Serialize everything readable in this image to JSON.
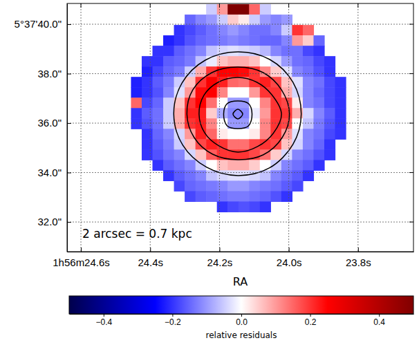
{
  "chart_data": {
    "type": "heatmap",
    "x_label": "RA",
    "annotation": "2 arcsec = 0.7 kpc",
    "grid": true,
    "xlim": [
      24.64,
      23.64
    ],
    "ylim": [
      30.8,
      40.84
    ],
    "xticks": [
      {
        "value": 24.6,
        "label": "1h56m24.6s"
      },
      {
        "value": 24.4,
        "label": "24.4s"
      },
      {
        "value": 24.2,
        "label": "24.2s"
      },
      {
        "value": 24.0,
        "label": "24.0s"
      },
      {
        "value": 23.8,
        "label": "23.8s"
      }
    ],
    "yticks": [
      {
        "value": 40,
        "label": "5°37'40.0\""
      },
      {
        "value": 38,
        "label": "38.0\""
      },
      {
        "value": 36,
        "label": "36.0\""
      },
      {
        "value": 34,
        "label": "34.0\""
      },
      {
        "value": 32,
        "label": "32.0\""
      }
    ],
    "x": [
      24.44,
      24.409,
      24.378,
      24.347,
      24.316,
      24.285,
      24.254,
      24.223,
      24.192,
      24.161,
      24.13,
      24.099,
      24.068,
      24.037,
      24.006,
      23.975,
      23.944,
      23.913,
      23.882,
      23.851
    ],
    "y": [
      40.6,
      40.18,
      39.76,
      39.34,
      38.92,
      38.5,
      38.08,
      37.66,
      37.24,
      36.82,
      36.4,
      35.98,
      35.56,
      35.14,
      34.72,
      34.3,
      33.88,
      33.46,
      33.04,
      32.62
    ],
    "z": [
      [
        null,
        null,
        null,
        null,
        null,
        null,
        null,
        -0.05,
        0.1,
        0.5,
        0.5,
        0.15,
        -0.05,
        null,
        null,
        null,
        null,
        null,
        null,
        null
      ],
      [
        null,
        null,
        null,
        null,
        null,
        -0.15,
        -0.12,
        -0.1,
        -0.05,
        0.05,
        0.02,
        -0.05,
        -0.1,
        -0.12,
        -0.1,
        null,
        null,
        null,
        null,
        null
      ],
      [
        null,
        null,
        null,
        null,
        -0.2,
        -0.18,
        -0.16,
        -0.14,
        -0.12,
        -0.1,
        -0.12,
        -0.14,
        -0.14,
        -0.12,
        -0.05,
        0.2,
        0.15,
        null,
        null,
        null
      ],
      [
        null,
        null,
        null,
        -0.22,
        -0.2,
        -0.17,
        -0.15,
        -0.14,
        -0.13,
        -0.12,
        -0.13,
        -0.14,
        -0.15,
        -0.15,
        -0.12,
        0.1,
        0.05,
        -0.15,
        null,
        null
      ],
      [
        null,
        null,
        -0.2,
        -0.2,
        -0.16,
        -0.14,
        -0.12,
        -0.06,
        -0.04,
        -0.03,
        -0.04,
        -0.05,
        -0.07,
        -0.12,
        -0.14,
        -0.14,
        -0.18,
        -0.2,
        null,
        null
      ],
      [
        null,
        -0.2,
        -0.2,
        -0.16,
        -0.15,
        -0.13,
        -0.06,
        -0.02,
        0.06,
        0.08,
        0.08,
        0.06,
        0.0,
        -0.04,
        -0.1,
        -0.14,
        -0.15,
        -0.18,
        -0.2,
        null
      ],
      [
        null,
        -0.22,
        -0.18,
        -0.15,
        -0.13,
        -0.05,
        0.08,
        0.2,
        0.25,
        0.25,
        0.24,
        0.2,
        0.12,
        0.05,
        -0.03,
        -0.12,
        -0.14,
        -0.17,
        -0.2,
        null
      ],
      [
        -0.22,
        -0.2,
        -0.16,
        -0.13,
        -0.05,
        0.06,
        0.2,
        0.26,
        0.22,
        0.15,
        0.14,
        0.2,
        0.22,
        0.18,
        0.06,
        -0.03,
        -0.12,
        -0.14,
        -0.18,
        -0.2
      ],
      [
        -0.22,
        -0.2,
        -0.17,
        -0.12,
        -0.03,
        0.1,
        0.24,
        0.25,
        0.12,
        0.0,
        0.0,
        0.1,
        0.2,
        0.2,
        0.08,
        -0.04,
        -0.12,
        -0.15,
        -0.18,
        -0.2
      ],
      [
        0.15,
        -0.18,
        -0.15,
        -0.05,
        0.06,
        0.2,
        0.25,
        0.14,
        0.0,
        -0.1,
        -0.1,
        0.0,
        0.12,
        0.2,
        0.18,
        0.02,
        -0.12,
        -0.14,
        -0.18,
        -0.2
      ],
      [
        -0.2,
        -0.16,
        -0.14,
        -0.05,
        0.08,
        0.22,
        0.22,
        0.05,
        -0.08,
        -0.12,
        -0.12,
        -0.02,
        0.1,
        0.2,
        0.2,
        0.08,
        -0.04,
        -0.12,
        -0.16,
        -0.2
      ],
      [
        -0.2,
        -0.17,
        -0.14,
        -0.05,
        0.08,
        0.2,
        0.22,
        0.12,
        0.0,
        -0.1,
        -0.1,
        0.0,
        0.12,
        0.2,
        0.18,
        0.0,
        -0.06,
        -0.13,
        -0.17,
        -0.2
      ],
      [
        null,
        -0.2,
        -0.15,
        -0.12,
        -0.04,
        0.1,
        0.22,
        0.15,
        0.02,
        0.0,
        0.0,
        0.02,
        0.12,
        0.2,
        0.1,
        -0.03,
        -0.12,
        -0.14,
        -0.18,
        -0.2
      ],
      [
        null,
        -0.2,
        -0.16,
        -0.13,
        -0.05,
        0.06,
        0.18,
        0.22,
        0.2,
        0.14,
        0.14,
        0.18,
        0.2,
        0.18,
        0.06,
        -0.04,
        -0.12,
        -0.15,
        -0.2,
        null
      ],
      [
        null,
        -0.2,
        -0.17,
        -0.14,
        -0.12,
        -0.04,
        0.06,
        0.16,
        0.2,
        0.2,
        0.2,
        0.18,
        0.14,
        0.05,
        -0.04,
        -0.12,
        -0.14,
        -0.17,
        -0.2,
        null
      ],
      [
        null,
        null,
        -0.2,
        -0.16,
        -0.14,
        -0.12,
        -0.05,
        0.0,
        0.06,
        0.08,
        0.08,
        0.05,
        0.0,
        -0.05,
        -0.12,
        -0.14,
        -0.16,
        -0.2,
        null,
        null
      ],
      [
        null,
        null,
        null,
        -0.2,
        -0.16,
        -0.14,
        -0.12,
        -0.06,
        -0.04,
        -0.03,
        -0.03,
        -0.04,
        -0.06,
        -0.12,
        -0.14,
        -0.16,
        -0.2,
        null,
        null,
        null
      ],
      [
        null,
        null,
        null,
        null,
        -0.18,
        -0.15,
        -0.14,
        -0.13,
        -0.12,
        -0.1,
        -0.1,
        -0.12,
        -0.13,
        -0.14,
        -0.16,
        -0.18,
        null,
        null,
        null,
        null
      ],
      [
        null,
        null,
        null,
        null,
        null,
        -0.18,
        -0.16,
        -0.15,
        -0.14,
        -0.13,
        -0.13,
        -0.14,
        -0.15,
        -0.17,
        -0.2,
        null,
        null,
        null,
        null,
        null
      ],
      [
        null,
        null,
        null,
        null,
        null,
        null,
        null,
        null,
        -0.2,
        -0.18,
        -0.17,
        -0.18,
        -0.2,
        null,
        null,
        null,
        null,
        null,
        null,
        null
      ]
    ],
    "colorbar": {
      "label": "relative residuals",
      "range": [
        -0.5,
        0.5
      ],
      "ticks": [
        {
          "value": -0.4,
          "label": "−0.4"
        },
        {
          "value": -0.2,
          "label": "−0.2"
        },
        {
          "value": 0,
          "label": "0.0"
        },
        {
          "value": 0.2,
          "label": "0.2"
        },
        {
          "value": 0.4,
          "label": "0.4"
        }
      ]
    },
    "contours": [
      {
        "color": "#000000",
        "x": [
          23.964,
          23.988,
          24.055,
          24.147,
          24.241,
          24.308,
          24.332,
          24.306,
          24.237,
          24.147,
          24.056,
          23.988
        ],
        "y": [
          36.366,
          37.652,
          38.575,
          38.882,
          38.547,
          37.624,
          36.366,
          35.108,
          34.213,
          33.878,
          34.185,
          35.136
        ]
      },
      {
        "color": "#000000",
        "x": [
          23.998,
          24.021,
          24.074,
          24.147,
          24.222,
          24.277,
          24.294,
          24.273,
          24.22,
          24.147,
          24.074,
          24.019
        ],
        "y": [
          36.366,
          37.345,
          38.044,
          38.267,
          38.044,
          37.345,
          36.366,
          35.415,
          34.744,
          34.521,
          34.716,
          35.415
        ]
      },
      {
        "color": "#000000",
        "x": [
          24.021,
          24.049,
          24.092,
          24.147,
          24.204,
          24.245,
          24.259,
          24.243,
          24.202,
          24.147,
          24.09,
          24.045
        ],
        "y": [
          36.366,
          37.149,
          37.652,
          37.848,
          37.652,
          37.121,
          36.366,
          35.611,
          35.08,
          34.828,
          35.052,
          35.583
        ]
      },
      {
        "color": "#000000",
        "x": [
          24.106,
          24.116,
          24.147,
          24.178,
          24.188,
          24.178,
          24.147,
          24.116
        ],
        "y": [
          36.366,
          36.785,
          36.897,
          36.785,
          36.366,
          35.891,
          35.779,
          35.891
        ]
      },
      {
        "color": "#000000",
        "x": [
          24.133,
          24.147,
          24.161,
          24.147
        ],
        "y": [
          36.366,
          36.562,
          36.366,
          36.17
        ]
      }
    ]
  }
}
